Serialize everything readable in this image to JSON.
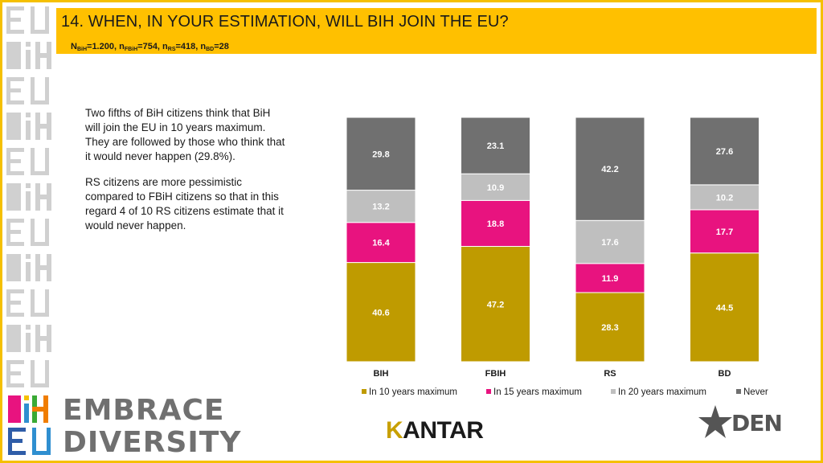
{
  "header": {
    "title": "14. WHEN, IN YOUR ESTIMATION, WILL BIH JOIN THE EU?",
    "sample": {
      "n_label": "N",
      "bih_sub": "BiH",
      "bih_val": "=1.200, n",
      "fbih_sub": "FBiH",
      "fbih_val": "=754, n",
      "rs_sub": "RS",
      "rs_val": "=418, n",
      "bd_sub": "BD",
      "bd_val": "=28"
    },
    "bar_color": "#ffc000"
  },
  "text": {
    "p1": "Two fifths of BiH citizens think that BiH will join the EU in 10 years maximum. They are followed by those who think that it would never happen (29.8%).",
    "p2": "RS citizens are more pessimistic compared to FBiH citizens so that in this regard 4 of 10 RS citizens estimate that it would never happen."
  },
  "chart_data": {
    "type": "bar",
    "stacked": true,
    "percent": true,
    "categories": [
      "BIH",
      "FBIH",
      "RS",
      "BD"
    ],
    "series": [
      {
        "name": "In 10 years maximum",
        "color": "#bf9b00",
        "values": [
          40.6,
          47.2,
          28.3,
          44.5
        ]
      },
      {
        "name": "In 15 years maximum",
        "color": "#e8137f",
        "values": [
          16.4,
          18.8,
          11.9,
          17.7
        ]
      },
      {
        "name": "In 20 years maximum",
        "color": "#bfbfbf",
        "values": [
          13.2,
          10.9,
          17.6,
          10.2
        ]
      },
      {
        "name": "Never",
        "color": "#707070",
        "values": [
          29.8,
          23.1,
          42.2,
          27.6
        ]
      }
    ],
    "ylim": [
      0,
      100
    ],
    "legend": "bottom"
  },
  "logos": {
    "left_top": "EMBRACE",
    "left_bottom": "DIVERSITY",
    "center": "KANTAR",
    "center_k": "K",
    "center_rest": "ANTAR",
    "right": "DEN"
  }
}
